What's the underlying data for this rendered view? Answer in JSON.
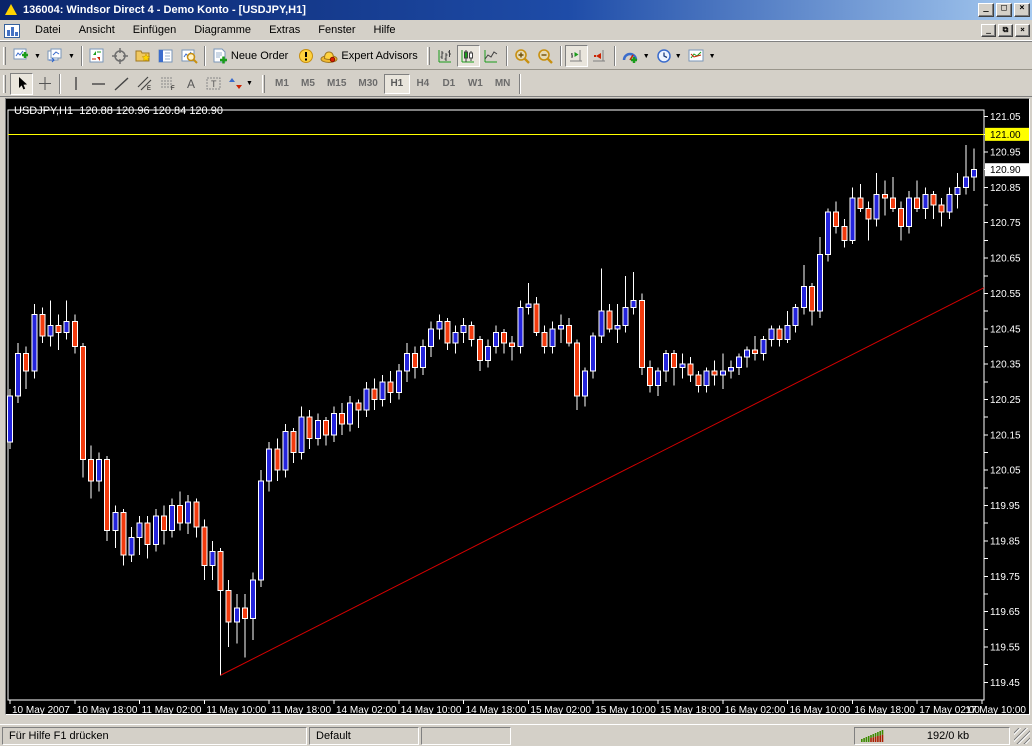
{
  "window": {
    "title": "136004: Windsor Direct 4 - Demo Konto - [USDJPY,H1]"
  },
  "menu": [
    "Datei",
    "Ansicht",
    "Einfügen",
    "Diagramme",
    "Extras",
    "Fenster",
    "Hilfe"
  ],
  "toolbars": {
    "standard": {
      "new_order_label": "Neue Order",
      "expert_advisors_label": "Expert Advisors",
      "buttons": [
        "new-chart",
        "profiles",
        "market-watch",
        "crosshair-window",
        "navigator",
        "terminal",
        "strategy-tester",
        "new-order",
        "alert",
        "expert-advisors",
        "bar-chart",
        "candlestick-chart",
        "line-chart",
        "zoom-in",
        "zoom-out",
        "auto-scroll",
        "chart-shift",
        "indicators",
        "periods",
        "templates"
      ],
      "active_buttons": [
        "candlestick-chart",
        "auto-scroll"
      ]
    },
    "drawing": {
      "buttons": [
        "cursor",
        "crosshair",
        "vertical-line",
        "horizontal-line",
        "trendline",
        "equidistant-channel",
        "fibonacci",
        "text",
        "text-label",
        "arrows"
      ],
      "active_buttons": [
        "cursor"
      ]
    },
    "periods": [
      "M1",
      "M5",
      "M15",
      "M30",
      "H1",
      "H4",
      "D1",
      "W1",
      "MN"
    ],
    "active_period": "H1"
  },
  "chart_data": {
    "type": "candlestick",
    "symbol": "USDJPY",
    "timeframe": "H1",
    "info_line": "USDJPY,H1  120.88 120.96 120.84 120.90",
    "current_bar": {
      "open": 120.88,
      "high": 120.96,
      "low": 120.84,
      "close": 120.9
    },
    "bid_label": {
      "price": 120.9,
      "text": "120.90",
      "bg": "#ffffff",
      "fg": "#000000"
    },
    "alert_line": {
      "price": 121.0,
      "text": "121.00",
      "color": "#ffff00",
      "label_bg": "#ffff00",
      "label_fg": "#000000"
    },
    "trendline": {
      "from_bar": 26,
      "from_price": 119.47,
      "to_bar": 121,
      "to_price": 120.575,
      "color": "#d40000"
    },
    "y_axis": {
      "labels": [
        "121.05",
        "120.95",
        "120.85",
        "120.75",
        "120.65",
        "120.55",
        "120.45",
        "120.35",
        "120.25",
        "120.15",
        "120.05",
        "119.95",
        "119.85",
        "119.75",
        "119.65",
        "119.55",
        "119.45"
      ],
      "tick_step": 0.05,
      "tick_min": 119.45,
      "tick_max": 121.05,
      "visible_range": [
        119.4,
        121.1
      ]
    },
    "x_axis": {
      "ticks": [
        {
          "bar": 0,
          "label": "10 May 2007"
        },
        {
          "bar": 8,
          "label": "10 May 18:00"
        },
        {
          "bar": 16,
          "label": "11 May 02:00"
        },
        {
          "bar": 24,
          "label": "11 May 10:00"
        },
        {
          "bar": 32,
          "label": "11 May 18:00"
        },
        {
          "bar": 40,
          "label": "14 May 02:00"
        },
        {
          "bar": 48,
          "label": "14 May 10:00"
        },
        {
          "bar": 56,
          "label": "14 May 18:00"
        },
        {
          "bar": 64,
          "label": "15 May 02:00"
        },
        {
          "bar": 72,
          "label": "15 May 10:00"
        },
        {
          "bar": 80,
          "label": "15 May 18:00"
        },
        {
          "bar": 88,
          "label": "16 May 02:00"
        },
        {
          "bar": 96,
          "label": "16 May 10:00"
        },
        {
          "bar": 104,
          "label": "16 May 18:00"
        },
        {
          "bar": 112,
          "label": "17 May 02:00"
        },
        {
          "bar": 120,
          "label": "17 May 10:00"
        }
      ]
    },
    "colors": {
      "background": "#000000",
      "bull": "#2424dc",
      "bear": "#f23b0e",
      "wick": "#ffffff",
      "axis_text": "#ffffff",
      "frame": "#ffffff"
    },
    "candles": [
      [
        120.13,
        120.28,
        120.11,
        120.26
      ],
      [
        120.26,
        120.41,
        120.24,
        120.38
      ],
      [
        120.38,
        120.4,
        120.28,
        120.33
      ],
      [
        120.33,
        120.52,
        120.31,
        120.49
      ],
      [
        120.49,
        120.51,
        120.41,
        120.43
      ],
      [
        120.43,
        120.53,
        120.4,
        120.46
      ],
      [
        120.46,
        120.49,
        120.39,
        120.44
      ],
      [
        120.44,
        120.53,
        120.42,
        120.47
      ],
      [
        120.47,
        120.49,
        120.38,
        120.4
      ],
      [
        120.4,
        120.41,
        120.03,
        120.08
      ],
      [
        120.08,
        120.12,
        119.97,
        120.02
      ],
      [
        120.02,
        120.1,
        119.99,
        120.08
      ],
      [
        120.08,
        120.09,
        119.85,
        119.88
      ],
      [
        119.88,
        119.95,
        119.83,
        119.93
      ],
      [
        119.93,
        119.94,
        119.78,
        119.81
      ],
      [
        119.81,
        119.89,
        119.79,
        119.86
      ],
      [
        119.86,
        119.92,
        119.81,
        119.9
      ],
      [
        119.9,
        119.92,
        119.8,
        119.84
      ],
      [
        119.84,
        119.94,
        119.82,
        119.92
      ],
      [
        119.92,
        119.95,
        119.84,
        119.88
      ],
      [
        119.88,
        119.97,
        119.86,
        119.95
      ],
      [
        119.95,
        119.99,
        119.88,
        119.9
      ],
      [
        119.9,
        119.98,
        119.87,
        119.96
      ],
      [
        119.96,
        119.97,
        119.86,
        119.89
      ],
      [
        119.89,
        119.91,
        119.74,
        119.78
      ],
      [
        119.78,
        119.85,
        119.74,
        119.82
      ],
      [
        119.82,
        119.83,
        119.47,
        119.71
      ],
      [
        119.71,
        119.74,
        119.55,
        119.62
      ],
      [
        119.62,
        119.7,
        119.56,
        119.66
      ],
      [
        119.66,
        119.7,
        119.52,
        119.63
      ],
      [
        119.63,
        119.76,
        119.57,
        119.74
      ],
      [
        119.74,
        120.05,
        119.72,
        120.02
      ],
      [
        120.02,
        120.13,
        119.99,
        120.11
      ],
      [
        120.11,
        120.14,
        120.02,
        120.05
      ],
      [
        120.05,
        120.18,
        120.03,
        120.16
      ],
      [
        120.16,
        120.17,
        120.07,
        120.1
      ],
      [
        120.1,
        120.23,
        120.08,
        120.2
      ],
      [
        120.2,
        120.22,
        120.11,
        120.14
      ],
      [
        120.14,
        120.21,
        120.12,
        120.19
      ],
      [
        120.19,
        120.2,
        120.12,
        120.15
      ],
      [
        120.15,
        120.23,
        120.13,
        120.21
      ],
      [
        120.21,
        120.24,
        120.15,
        120.18
      ],
      [
        120.18,
        120.26,
        120.16,
        120.24
      ],
      [
        120.24,
        120.25,
        120.17,
        120.22
      ],
      [
        120.22,
        120.3,
        120.2,
        120.28
      ],
      [
        120.28,
        120.31,
        120.22,
        120.25
      ],
      [
        120.25,
        120.32,
        120.23,
        120.3
      ],
      [
        120.3,
        120.33,
        120.24,
        120.27
      ],
      [
        120.27,
        120.35,
        120.25,
        120.33
      ],
      [
        120.33,
        120.41,
        120.3,
        120.38
      ],
      [
        120.38,
        120.4,
        120.31,
        120.34
      ],
      [
        120.34,
        120.42,
        120.32,
        120.4
      ],
      [
        120.4,
        120.47,
        120.37,
        120.45
      ],
      [
        120.45,
        120.49,
        120.42,
        120.47
      ],
      [
        120.47,
        120.48,
        120.39,
        120.41
      ],
      [
        120.41,
        120.46,
        120.38,
        120.44
      ],
      [
        120.44,
        120.48,
        120.41,
        120.46
      ],
      [
        120.46,
        120.47,
        120.4,
        120.42
      ],
      [
        120.42,
        120.43,
        120.33,
        120.36
      ],
      [
        120.36,
        120.42,
        120.34,
        120.4
      ],
      [
        120.4,
        120.46,
        120.38,
        120.44
      ],
      [
        120.44,
        120.45,
        120.38,
        120.41
      ],
      [
        120.41,
        120.43,
        120.36,
        120.4
      ],
      [
        120.4,
        120.53,
        120.38,
        120.51
      ],
      [
        120.51,
        120.58,
        120.49,
        120.52
      ],
      [
        120.52,
        120.54,
        120.43,
        120.44
      ],
      [
        120.44,
        120.46,
        120.38,
        120.4
      ],
      [
        120.4,
        120.47,
        120.38,
        120.45
      ],
      [
        120.45,
        120.49,
        120.41,
        120.46
      ],
      [
        120.46,
        120.48,
        120.4,
        120.41
      ],
      [
        120.41,
        120.42,
        120.22,
        120.26
      ],
      [
        120.26,
        120.34,
        120.23,
        120.33
      ],
      [
        120.33,
        120.44,
        120.31,
        120.43
      ],
      [
        120.43,
        120.62,
        120.41,
        120.5
      ],
      [
        120.5,
        120.52,
        120.44,
        120.45
      ],
      [
        120.45,
        120.52,
        120.41,
        120.46
      ],
      [
        120.46,
        120.6,
        120.44,
        120.51
      ],
      [
        120.51,
        120.61,
        120.49,
        120.53
      ],
      [
        120.53,
        120.55,
        120.32,
        120.34
      ],
      [
        120.34,
        120.36,
        120.27,
        120.29
      ],
      [
        120.29,
        120.34,
        120.26,
        120.33
      ],
      [
        120.33,
        120.39,
        120.3,
        120.38
      ],
      [
        120.38,
        120.39,
        120.29,
        120.34
      ],
      [
        120.34,
        120.38,
        120.31,
        120.35
      ],
      [
        120.35,
        120.37,
        120.3,
        120.32
      ],
      [
        120.32,
        120.33,
        120.27,
        120.29
      ],
      [
        120.29,
        120.34,
        120.27,
        120.33
      ],
      [
        120.33,
        120.36,
        120.29,
        120.32
      ],
      [
        120.32,
        120.38,
        120.28,
        120.33
      ],
      [
        120.33,
        120.36,
        120.31,
        120.34
      ],
      [
        120.34,
        120.38,
        120.32,
        120.37
      ],
      [
        120.37,
        120.4,
        120.34,
        120.39
      ],
      [
        120.39,
        120.43,
        120.36,
        120.38
      ],
      [
        120.38,
        120.43,
        120.36,
        120.42
      ],
      [
        120.42,
        120.46,
        120.4,
        120.45
      ],
      [
        120.45,
        120.46,
        120.4,
        120.42
      ],
      [
        120.42,
        120.5,
        120.41,
        120.46
      ],
      [
        120.46,
        120.52,
        120.44,
        120.51
      ],
      [
        120.51,
        120.63,
        120.49,
        120.57
      ],
      [
        120.57,
        120.58,
        120.46,
        120.5
      ],
      [
        120.5,
        120.71,
        120.48,
        120.66
      ],
      [
        120.66,
        120.79,
        120.64,
        120.78
      ],
      [
        120.78,
        120.81,
        120.72,
        120.74
      ],
      [
        120.74,
        120.76,
        120.68,
        120.7
      ],
      [
        120.7,
        120.85,
        120.69,
        120.82
      ],
      [
        120.82,
        120.86,
        120.78,
        120.79
      ],
      [
        120.79,
        120.81,
        120.7,
        120.76
      ],
      [
        120.76,
        120.89,
        120.74,
        120.83
      ],
      [
        120.83,
        120.87,
        120.77,
        120.82
      ],
      [
        120.82,
        120.88,
        120.78,
        120.79
      ],
      [
        120.79,
        120.81,
        120.7,
        120.74
      ],
      [
        120.74,
        120.84,
        120.72,
        120.82
      ],
      [
        120.82,
        120.87,
        120.78,
        120.79
      ],
      [
        120.79,
        120.85,
        120.76,
        120.83
      ],
      [
        120.83,
        120.84,
        120.76,
        120.8
      ],
      [
        120.8,
        120.82,
        120.74,
        120.78
      ],
      [
        120.78,
        120.85,
        120.76,
        120.83
      ],
      [
        120.83,
        120.89,
        120.79,
        120.85
      ],
      [
        120.85,
        120.97,
        120.83,
        120.88
      ],
      [
        120.88,
        120.96,
        120.84,
        120.9
      ]
    ]
  },
  "status": {
    "help": "Für Hilfe F1 drücken",
    "profile": "Default",
    "traffic": "192/0 kb",
    "connection_icon": "signal-bars"
  }
}
